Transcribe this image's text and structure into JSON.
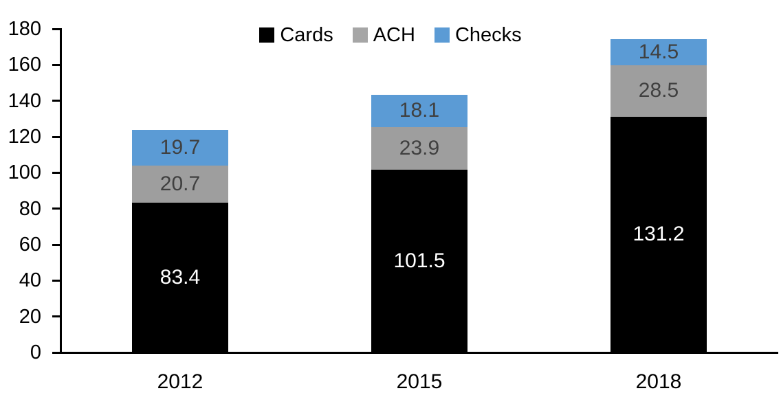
{
  "chart_data": {
    "type": "bar",
    "stacked": true,
    "title": "",
    "categories": [
      "2012",
      "2015",
      "2018"
    ],
    "series": [
      {
        "name": "Cards",
        "color": "#000000",
        "label_color": "#ffffff",
        "values": [
          83.4,
          101.5,
          131.2
        ]
      },
      {
        "name": "ACH",
        "color": "#9e9e9e",
        "label_color": "#404040",
        "values": [
          20.7,
          23.9,
          28.5
        ]
      },
      {
        "name": "Checks",
        "color": "#5b9bd5",
        "label_color": "#404040",
        "values": [
          19.7,
          18.1,
          14.5
        ]
      }
    ],
    "totals": [
      123.8,
      143.5,
      174.2
    ],
    "ylim": [
      0,
      180
    ],
    "ytick_step": 20,
    "ytick_labels": [
      "0",
      "20",
      "40",
      "60",
      "80",
      "100",
      "120",
      "140",
      "160",
      "180"
    ],
    "legend": {
      "position": "top-center",
      "entries": [
        "Cards",
        "ACH",
        "Checks"
      ],
      "swatch_colors": [
        "#000000",
        "#a6a6a6",
        "#5b9bd5"
      ]
    },
    "grid": false,
    "axis_color": "#000000",
    "background_color": "#ffffff",
    "xlabel": "",
    "ylabel": ""
  }
}
